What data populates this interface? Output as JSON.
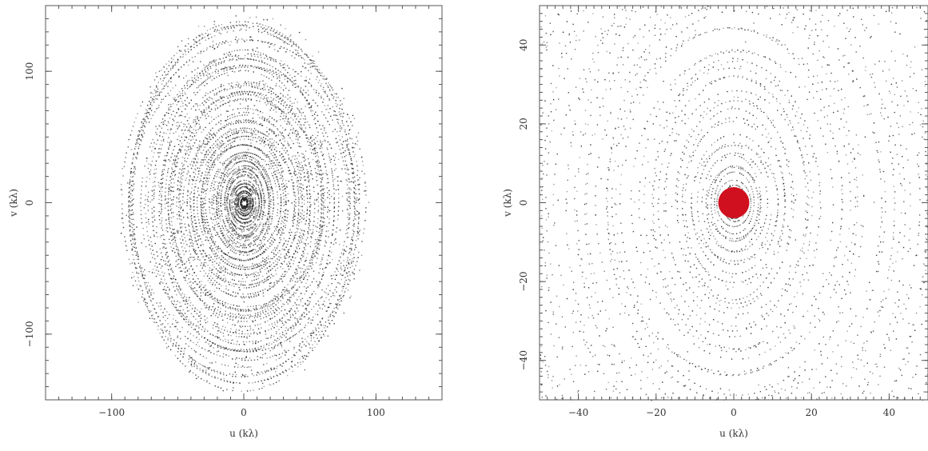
{
  "chart_data": [
    {
      "type": "scatter",
      "title": "",
      "xlabel": "u (kλ)",
      "ylabel": "v (kλ)",
      "xlim": [
        -150,
        150
      ],
      "ylim": [
        -150,
        150
      ],
      "xticks": [
        -100,
        0,
        100
      ],
      "yticks": [
        -100,
        0,
        100
      ],
      "xtick_labels": [
        "−100",
        "0",
        "100"
      ],
      "ytick_labels": [
        "−100",
        "0",
        "100"
      ],
      "description": "uv-coverage: concentric elliptical tracks, dense within |u|,|v|<~60, extending to |u|~90, |v|~145",
      "extent_u": 90,
      "extent_v": 145,
      "center_hole_radius": 2,
      "marker_color": "#1a1a1a",
      "grid": false
    },
    {
      "type": "scatter",
      "title": "",
      "xlabel": "u (kλ)",
      "ylabel": "v (kλ)",
      "xlim": [
        -50,
        50
      ],
      "ylim": [
        -50,
        50
      ],
      "xticks": [
        -40,
        -20,
        0,
        20,
        40
      ],
      "yticks": [
        -40,
        -20,
        0,
        20,
        40
      ],
      "xtick_labels": [
        "−40",
        "−20",
        "0",
        "20",
        "40"
      ],
      "ytick_labels": [
        "−40",
        "−20",
        "0",
        "20",
        "40"
      ],
      "description": "zoomed uv-coverage of the central region with a filled red disk marking the short-spacing hole",
      "extent_u": 90,
      "extent_v": 145,
      "highlight_disk": {
        "u": 0,
        "v": 0,
        "radius": 4,
        "color": "#d0101e"
      },
      "marker_color": "#1a1a1a",
      "grid": false
    }
  ]
}
